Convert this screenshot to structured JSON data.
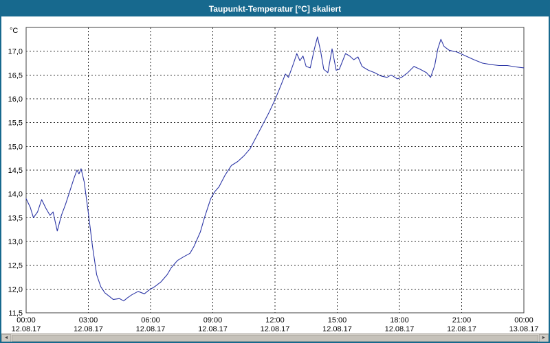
{
  "window": {
    "title": "Taupunkt-Temperatur [°C] skaliert"
  },
  "colors": {
    "titlebar": "#17698e",
    "line": "#2b35a5",
    "grid": "#2a2a2a",
    "plot_border": "#404040",
    "text": "#000000",
    "scrollbar_track": "#d8d4cd",
    "scrollbar_thumb": "#c6c2ba"
  },
  "icons": {
    "scroll_left": "◄",
    "scroll_right": "►"
  },
  "chart_data": {
    "type": "line",
    "title": "Taupunkt-Temperatur [°C] skaliert",
    "ylabel": "°C",
    "xlabel": "",
    "ylim": [
      11.5,
      17.5
    ],
    "xlim_hours": [
      0,
      24
    ],
    "grid": "dashed",
    "legend": "none",
    "line_color": "#2b35a5",
    "y_ticks": [
      {
        "value": 17.0,
        "label": "17,0"
      },
      {
        "value": 16.5,
        "label": "16,5"
      },
      {
        "value": 16.0,
        "label": "16,0"
      },
      {
        "value": 15.5,
        "label": "15,5"
      },
      {
        "value": 15.0,
        "label": "15,0"
      },
      {
        "value": 14.5,
        "label": "14,5"
      },
      {
        "value": 14.0,
        "label": "14,0"
      },
      {
        "value": 13.5,
        "label": "13,5"
      },
      {
        "value": 13.0,
        "label": "13,0"
      },
      {
        "value": 12.5,
        "label": "12,5"
      },
      {
        "value": 12.0,
        "label": "12,0"
      },
      {
        "value": 11.5,
        "label": "11,5"
      }
    ],
    "x_ticks": [
      {
        "hour": 0,
        "time": "00:00",
        "date": "12.08.17"
      },
      {
        "hour": 3,
        "time": "03:00",
        "date": "12.08.17"
      },
      {
        "hour": 6,
        "time": "06:00",
        "date": "12.08.17"
      },
      {
        "hour": 9,
        "time": "09:00",
        "date": "12.08.17"
      },
      {
        "hour": 12,
        "time": "12:00",
        "date": "12.08.17"
      },
      {
        "hour": 15,
        "time": "15:00",
        "date": "12.08.17"
      },
      {
        "hour": 18,
        "time": "18:00",
        "date": "12.08.17"
      },
      {
        "hour": 21,
        "time": "21:00",
        "date": "12.08.17"
      },
      {
        "hour": 24,
        "time": "00:00",
        "date": "13.08.17"
      }
    ],
    "series": [
      {
        "name": "Taupunkt-Temperatur",
        "points": [
          [
            0,
            13.9
          ],
          [
            0.2,
            13.72
          ],
          [
            0.35,
            13.5
          ],
          [
            0.55,
            13.62
          ],
          [
            0.75,
            13.88
          ],
          [
            0.95,
            13.7
          ],
          [
            1.15,
            13.55
          ],
          [
            1.3,
            13.62
          ],
          [
            1.5,
            13.22
          ],
          [
            1.7,
            13.55
          ],
          [
            1.9,
            13.78
          ],
          [
            2.1,
            14.05
          ],
          [
            2.3,
            14.32
          ],
          [
            2.45,
            14.5
          ],
          [
            2.55,
            14.42
          ],
          [
            2.65,
            14.53
          ],
          [
            2.8,
            14.25
          ],
          [
            3.0,
            13.6
          ],
          [
            3.2,
            12.9
          ],
          [
            3.4,
            12.3
          ],
          [
            3.6,
            12.05
          ],
          [
            3.8,
            11.92
          ],
          [
            4.0,
            11.85
          ],
          [
            4.2,
            11.78
          ],
          [
            4.5,
            11.8
          ],
          [
            4.7,
            11.75
          ],
          [
            4.9,
            11.82
          ],
          [
            5.1,
            11.88
          ],
          [
            5.4,
            11.95
          ],
          [
            5.7,
            11.9
          ],
          [
            5.9,
            11.97
          ],
          [
            6.2,
            12.05
          ],
          [
            6.5,
            12.15
          ],
          [
            6.8,
            12.3
          ],
          [
            7.0,
            12.45
          ],
          [
            7.3,
            12.6
          ],
          [
            7.6,
            12.68
          ],
          [
            7.9,
            12.75
          ],
          [
            8.1,
            12.9
          ],
          [
            8.4,
            13.2
          ],
          [
            8.6,
            13.5
          ],
          [
            8.9,
            13.9
          ],
          [
            9.1,
            14.05
          ],
          [
            9.3,
            14.15
          ],
          [
            9.6,
            14.4
          ],
          [
            9.9,
            14.6
          ],
          [
            10.2,
            14.68
          ],
          [
            10.5,
            14.8
          ],
          [
            10.8,
            14.95
          ],
          [
            11.1,
            15.2
          ],
          [
            11.4,
            15.45
          ],
          [
            11.7,
            15.7
          ],
          [
            12.0,
            15.98
          ],
          [
            12.3,
            16.3
          ],
          [
            12.5,
            16.52
          ],
          [
            12.65,
            16.45
          ],
          [
            12.9,
            16.75
          ],
          [
            13.05,
            16.95
          ],
          [
            13.2,
            16.8
          ],
          [
            13.35,
            16.9
          ],
          [
            13.5,
            16.68
          ],
          [
            13.7,
            16.65
          ],
          [
            13.9,
            17.05
          ],
          [
            14.05,
            17.3
          ],
          [
            14.2,
            17.0
          ],
          [
            14.35,
            16.62
          ],
          [
            14.55,
            16.55
          ],
          [
            14.75,
            17.05
          ],
          [
            14.95,
            16.6
          ],
          [
            15.1,
            16.62
          ],
          [
            15.4,
            16.95
          ],
          [
            15.6,
            16.9
          ],
          [
            15.8,
            16.82
          ],
          [
            16.0,
            16.88
          ],
          [
            16.2,
            16.68
          ],
          [
            16.5,
            16.6
          ],
          [
            16.8,
            16.55
          ],
          [
            17.1,
            16.48
          ],
          [
            17.4,
            16.45
          ],
          [
            17.6,
            16.5
          ],
          [
            17.9,
            16.42
          ],
          [
            18.1,
            16.45
          ],
          [
            18.4,
            16.55
          ],
          [
            18.7,
            16.68
          ],
          [
            19.0,
            16.62
          ],
          [
            19.3,
            16.55
          ],
          [
            19.5,
            16.45
          ],
          [
            19.7,
            16.7
          ],
          [
            19.85,
            17.05
          ],
          [
            20.0,
            17.25
          ],
          [
            20.15,
            17.1
          ],
          [
            20.4,
            17.02
          ],
          [
            20.8,
            16.98
          ],
          [
            21.2,
            16.9
          ],
          [
            21.6,
            16.82
          ],
          [
            22.0,
            16.75
          ],
          [
            22.4,
            16.72
          ],
          [
            22.8,
            16.7
          ],
          [
            23.2,
            16.7
          ],
          [
            23.6,
            16.67
          ],
          [
            24.0,
            16.65
          ]
        ]
      }
    ]
  }
}
